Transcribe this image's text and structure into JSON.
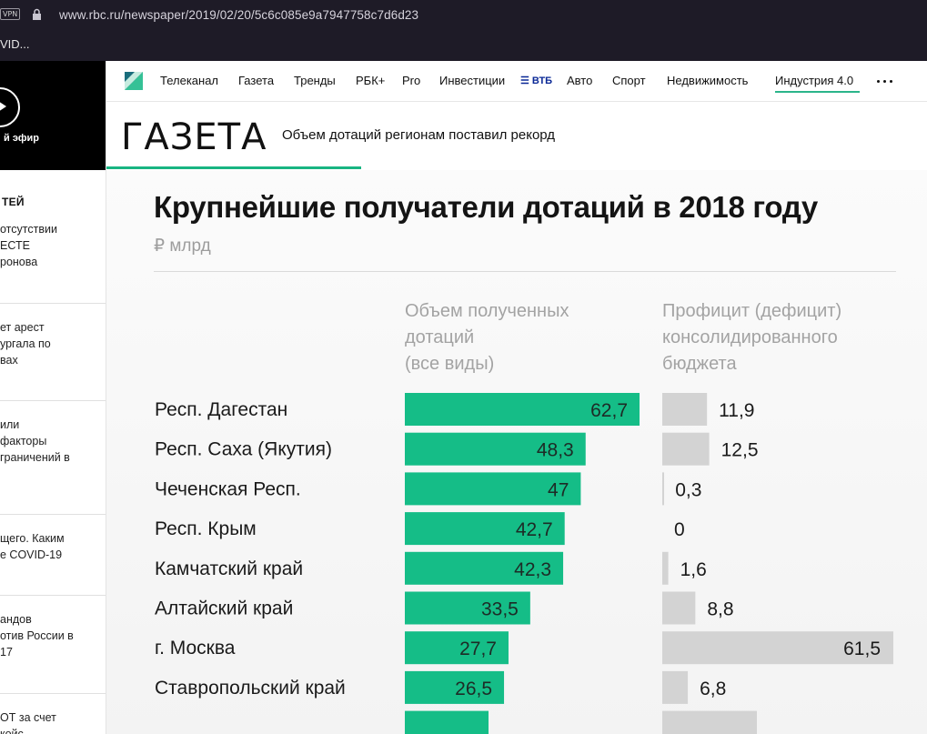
{
  "browser": {
    "vpn_badge": "VPN",
    "url": "www.rbc.ru/newspaper/2019/02/20/5c6c085e9a7947758c7d6d23",
    "tab_title": "VID..."
  },
  "sidebar": {
    "live_label": "й эфир",
    "heading": "ТЕЙ",
    "news": [
      [
        "отсутствии",
        "ЕСТЕ",
        "ронова"
      ],
      [
        "ет арест",
        "ургала по",
        "вах"
      ],
      [
        "или",
        "факторы",
        "граничений в"
      ],
      [
        "щего. Каким",
        "е COVID-19"
      ],
      [
        "андов",
        "отив России в",
        "17"
      ],
      [
        "ОТ за счет",
        "койс"
      ]
    ]
  },
  "nav": {
    "items": [
      "Телеканал",
      "Газета",
      "Тренды",
      "РБК+",
      "Pro",
      "Инвестиции",
      "ВТБ",
      "Авто",
      "Спорт",
      "Недвижимость",
      "Индустрия 4.0"
    ]
  },
  "section": {
    "title": "ГАЗЕТА",
    "article_title": "Объем дотаций регионам поставил рекорд"
  },
  "chart_data": {
    "type": "bar",
    "title": "Крупнейшие получатели дотаций в 2018 году",
    "subtitle": "₽ млрд",
    "col1_header": [
      "Объем полученных",
      "дотаций",
      "(все виды)"
    ],
    "col2_header": [
      "Профицит (дефицит)",
      "консолидированного",
      "бюджета"
    ],
    "categories": [
      "Респ. Дагестан",
      "Респ. Саха (Якутия)",
      "Чеченская Респ.",
      "Респ. Крым",
      "Камчатский край",
      "Алтайский край",
      "г. Москва",
      "Ставропольский край"
    ],
    "series": [
      {
        "values": [
          62.7,
          48.3,
          47,
          42.7,
          42.3,
          33.5,
          27.7,
          26.5
        ],
        "labels": [
          "62,7",
          "48,3",
          "47",
          "42,7",
          "42,3",
          "33,5",
          "27,7",
          "26,5"
        ],
        "color": "#15bd87"
      },
      {
        "values": [
          11.9,
          12.5,
          0.3,
          0,
          1.6,
          8.8,
          61.5,
          6.8
        ],
        "labels": [
          "11,9",
          "12,5",
          "0,3",
          "0",
          "1,6",
          "8,8",
          "61,5",
          "6,8"
        ],
        "color": "#d3d3d3"
      }
    ]
  },
  "colors": {
    "accent": "#18b482",
    "bar_primary": "#15bd87",
    "bar_secondary": "#d3d3d3",
    "browser_bg": "#1e1b27"
  }
}
